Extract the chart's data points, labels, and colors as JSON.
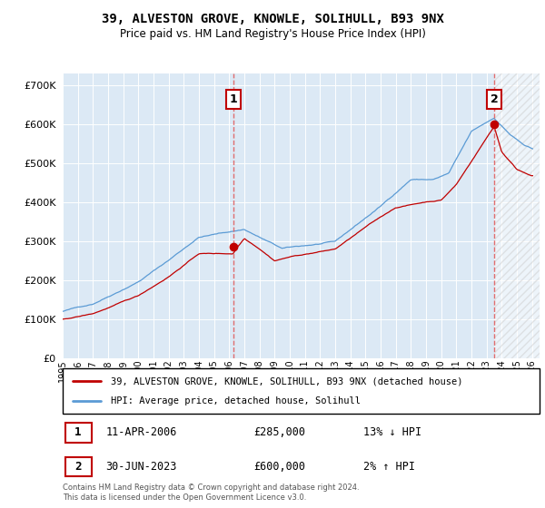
{
  "title": "39, ALVESTON GROVE, KNOWLE, SOLIHULL, B93 9NX",
  "subtitle": "Price paid vs. HM Land Registry's House Price Index (HPI)",
  "ylim": [
    0,
    730000
  ],
  "hpi_color": "#5b9bd5",
  "price_color": "#c00000",
  "dashed_color": "#e06060",
  "marker1_label": "1",
  "marker2_label": "2",
  "marker1_price": 285000,
  "marker2_price": 600000,
  "legend_line1": "39, ALVESTON GROVE, KNOWLE, SOLIHULL, B93 9NX (detached house)",
  "legend_line2": "HPI: Average price, detached house, Solihull",
  "ann1_date": "11-APR-2006",
  "ann1_price": "£285,000",
  "ann1_hpi": "13% ↓ HPI",
  "ann2_date": "30-JUN-2023",
  "ann2_price": "£600,000",
  "ann2_hpi": "2% ↑ HPI",
  "footer": "Contains HM Land Registry data © Crown copyright and database right 2024.\nThis data is licensed under the Open Government Licence v3.0.",
  "bg_color": "#dce9f5",
  "grid_color": "#ffffff",
  "hatch_color": "#cccccc"
}
